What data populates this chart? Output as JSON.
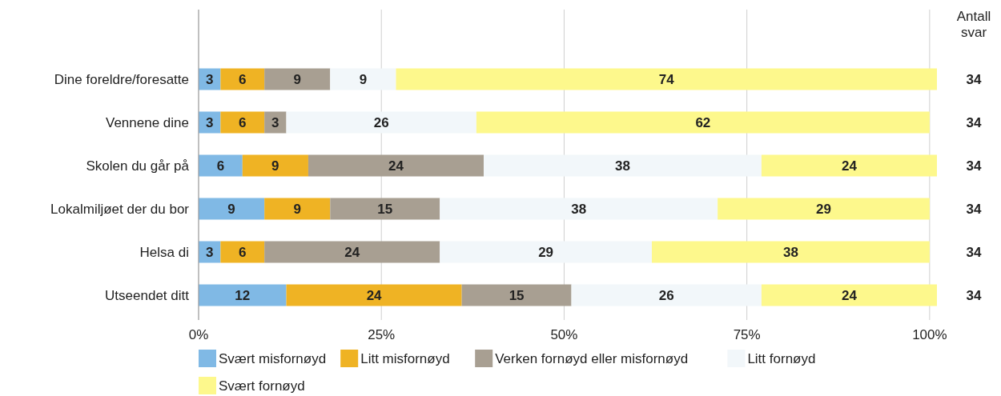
{
  "chart_data": {
    "type": "bar",
    "orientation": "horizontal",
    "stacked": true,
    "categories": [
      "Dine foreldre/foresatte",
      "Vennene dine",
      "Skolen du går på",
      "Lokalmiljøet der du bor",
      "Helsa di",
      "Utseendet ditt"
    ],
    "series": [
      {
        "name": "Svært misfornøyd",
        "color": "#80b9e5",
        "values": [
          3,
          3,
          6,
          9,
          3,
          12
        ]
      },
      {
        "name": "Litt misfornøyd",
        "color": "#efb324",
        "values": [
          6,
          6,
          9,
          9,
          6,
          24
        ]
      },
      {
        "name": "Verken fornøyd eller misfornøyd",
        "color": "#a89f92",
        "values": [
          9,
          3,
          24,
          15,
          24,
          15
        ]
      },
      {
        "name": "Litt fornøyd",
        "color": "#f2f7fa",
        "values": [
          9,
          26,
          38,
          38,
          29,
          26
        ]
      },
      {
        "name": "Svært fornøyd",
        "color": "#fdf88c",
        "values": [
          74,
          62,
          24,
          29,
          38,
          24
        ]
      }
    ],
    "xlim": [
      0,
      101
    ],
    "xticks": [
      {
        "value": 0,
        "label": "0%"
      },
      {
        "value": 25,
        "label": "25%"
      },
      {
        "value": 50,
        "label": "50%"
      },
      {
        "value": 75,
        "label": "75%"
      },
      {
        "value": 100,
        "label": "100%"
      }
    ],
    "grid": "x",
    "legend": "bottom",
    "data_labels": true,
    "annotations": [
      "Antall svar",
      "34",
      "34",
      "34",
      "34",
      "34",
      "34"
    ]
  }
}
